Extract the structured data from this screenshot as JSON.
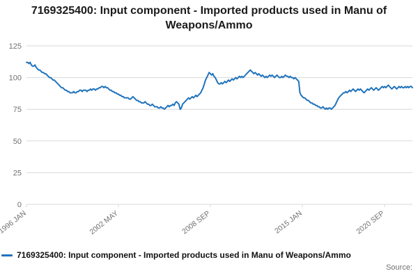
{
  "title": "7169325400: Input component - Imported products used in Manu of Weapons/Ammo",
  "legend": {
    "label": "7169325400: Input component - Imported products used in Manu of Weapons/Ammo"
  },
  "footer": {
    "source_label": "Source:"
  },
  "colors": {
    "line": "#2073bc",
    "grid": "#d9d9d9",
    "axis_text": "#707070",
    "title_text": "#1a1a1a"
  },
  "chart_data": {
    "type": "line",
    "title": "7169325400: Input component - Imported products used in Manu of Weapons/Ammo",
    "xlabel": "",
    "ylabel": "",
    "ylim": [
      0,
      125
    ],
    "y_ticks": [
      0,
      25,
      50,
      75,
      100,
      125
    ],
    "grid": true,
    "legend_position": "bottom",
    "x_start": "1996-01",
    "frequency": "monthly",
    "x_ticks": [
      {
        "label": "1996 JAN",
        "month_index": 0
      },
      {
        "label": "2002 MAY",
        "month_index": 76
      },
      {
        "label": "2008 SEP",
        "month_index": 152
      },
      {
        "label": "2015 JAN",
        "month_index": 228
      },
      {
        "label": "2020 SEP",
        "month_index": 296
      }
    ],
    "series": [
      {
        "name": "7169325400: Input component - Imported products used in Manu of Weapons/Ammo",
        "color": "#2073bc",
        "values": [
          112,
          112,
          111,
          112,
          110,
          109,
          109,
          110,
          108,
          107,
          106,
          106,
          105,
          104,
          104,
          103,
          103,
          102,
          101,
          100,
          100,
          99,
          98,
          98,
          97,
          96,
          95,
          94,
          93,
          92,
          92,
          91,
          90,
          90,
          89,
          89,
          88,
          88,
          88,
          89,
          88,
          88,
          89,
          89,
          90,
          90,
          89,
          90,
          90,
          90,
          89,
          90,
          90,
          91,
          90,
          91,
          91,
          90,
          91,
          91,
          92,
          92,
          93,
          93,
          92,
          93,
          92,
          92,
          91,
          90,
          90,
          89,
          89,
          88,
          88,
          87,
          87,
          86,
          86,
          85,
          85,
          84,
          84,
          84,
          84,
          83,
          83,
          84,
          85,
          84,
          83,
          82,
          82,
          81,
          81,
          80,
          80,
          80,
          81,
          80,
          79,
          79,
          78,
          78,
          79,
          78,
          77,
          77,
          77,
          76,
          76,
          77,
          76,
          76,
          75,
          76,
          77,
          78,
          77,
          78,
          78,
          79,
          78,
          80,
          81,
          80,
          79,
          75,
          76,
          79,
          80,
          81,
          82,
          83,
          84,
          83,
          84,
          85,
          84,
          85,
          86,
          85,
          86,
          87,
          88,
          90,
          92,
          95,
          98,
          100,
          102,
          104,
          103,
          102,
          103,
          101,
          100,
          98,
          96,
          95,
          95,
          96,
          95,
          96,
          97,
          96,
          97,
          98,
          97,
          98,
          99,
          98,
          99,
          100,
          99,
          100,
          101,
          100,
          101,
          100,
          101,
          102,
          103,
          104,
          105,
          106,
          105,
          104,
          103,
          104,
          103,
          102,
          103,
          102,
          101,
          102,
          101,
          100,
          101,
          100,
          101,
          102,
          101,
          102,
          101,
          100,
          101,
          102,
          101,
          100,
          100,
          101,
          100,
          101,
          102,
          101,
          101,
          100,
          101,
          100,
          100,
          99,
          100,
          99,
          98,
          97,
          88,
          86,
          85,
          84,
          84,
          83,
          82,
          82,
          81,
          80,
          80,
          79,
          79,
          78,
          78,
          77,
          77,
          76,
          76,
          77,
          76,
          75,
          76,
          75,
          76,
          76,
          75,
          76,
          77,
          78,
          80,
          82,
          84,
          85,
          86,
          87,
          88,
          88,
          89,
          88,
          89,
          90,
          89,
          90,
          91,
          90,
          89,
          90,
          91,
          90,
          91,
          90,
          89,
          88,
          89,
          90,
          91,
          90,
          91,
          92,
          91,
          90,
          91,
          92,
          91,
          90,
          91,
          92,
          93,
          92,
          93,
          92,
          93,
          94,
          93,
          92,
          91,
          92,
          93,
          92,
          91,
          92,
          93,
          92,
          93,
          92,
          92,
          93,
          92,
          93,
          92,
          93,
          93,
          92
        ]
      }
    ]
  }
}
